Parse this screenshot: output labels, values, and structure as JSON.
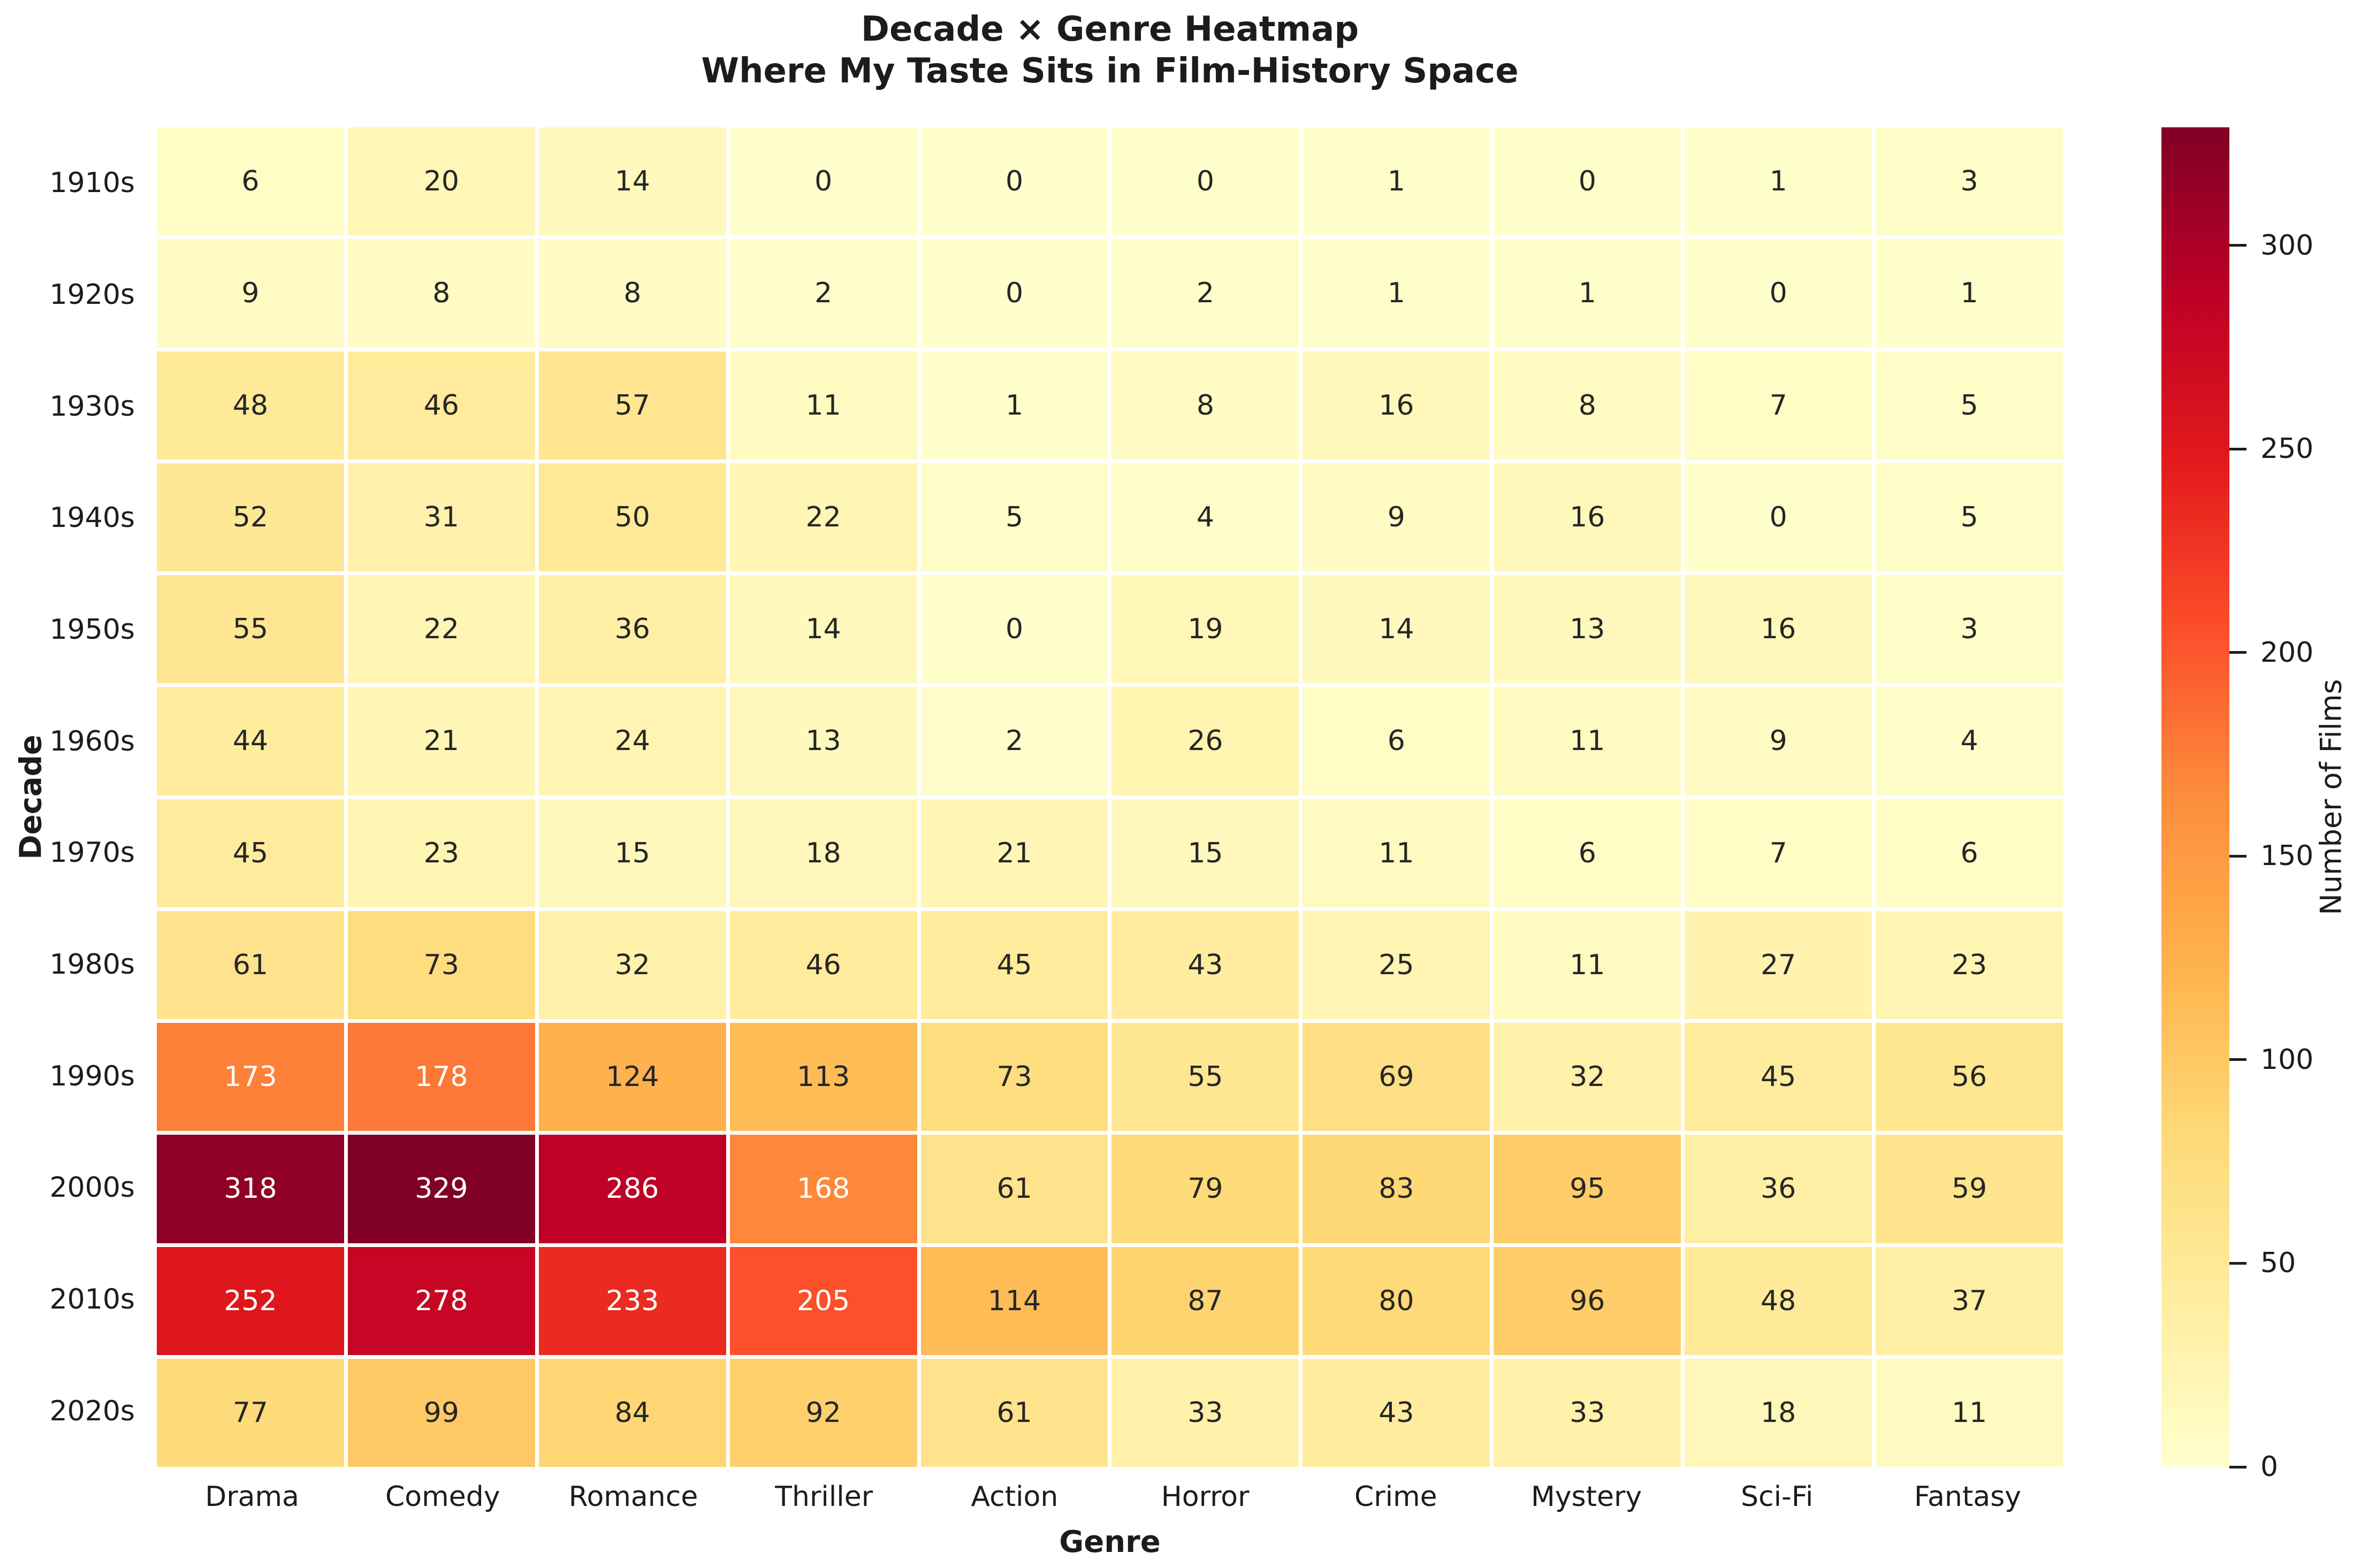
{
  "chart_data": {
    "type": "heatmap",
    "title_line1": "Decade × Genre Heatmap",
    "title_line2": "Where My Taste Sits in Film-History Space",
    "xlabel": "Genre",
    "ylabel": "Decade",
    "columns": [
      "Drama",
      "Comedy",
      "Romance",
      "Thriller",
      "Action",
      "Horror",
      "Crime",
      "Mystery",
      "Sci-Fi",
      "Fantasy"
    ],
    "rows": [
      "1910s",
      "1920s",
      "1930s",
      "1940s",
      "1950s",
      "1960s",
      "1970s",
      "1980s",
      "1990s",
      "2000s",
      "2010s",
      "2020s"
    ],
    "values": [
      [
        6,
        20,
        14,
        0,
        0,
        0,
        1,
        0,
        1,
        3
      ],
      [
        9,
        8,
        8,
        2,
        0,
        2,
        1,
        1,
        0,
        1
      ],
      [
        48,
        46,
        57,
        11,
        1,
        8,
        16,
        8,
        7,
        5
      ],
      [
        52,
        31,
        50,
        22,
        5,
        4,
        9,
        16,
        0,
        5
      ],
      [
        55,
        22,
        36,
        14,
        0,
        19,
        14,
        13,
        16,
        3
      ],
      [
        44,
        21,
        24,
        13,
        2,
        26,
        6,
        11,
        9,
        4
      ],
      [
        45,
        23,
        15,
        18,
        21,
        15,
        11,
        6,
        7,
        6
      ],
      [
        61,
        73,
        32,
        46,
        45,
        43,
        25,
        11,
        27,
        23
      ],
      [
        173,
        178,
        124,
        113,
        73,
        55,
        69,
        32,
        45,
        56
      ],
      [
        318,
        329,
        286,
        168,
        61,
        79,
        83,
        95,
        36,
        59
      ],
      [
        252,
        278,
        233,
        205,
        114,
        87,
        80,
        96,
        48,
        37
      ],
      [
        77,
        99,
        84,
        92,
        61,
        33,
        43,
        33,
        18,
        11
      ]
    ],
    "vmin": 0,
    "vmax": 329,
    "colormap": "YlOrRd",
    "colormap_stops": [
      "#ffffcc",
      "#ffeda0",
      "#fed976",
      "#feb24c",
      "#fd8d3c",
      "#fc4e2a",
      "#e31a1c",
      "#bd0026",
      "#800026"
    ],
    "annotation_dark_text": "#262626",
    "annotation_light_text": "#ffffff",
    "grid_line_color": "#ffffff",
    "legend_position": "colorbar-right",
    "colorbar": {
      "label": "Number of Films",
      "ticks": [
        0,
        50,
        100,
        150,
        200,
        250,
        300
      ]
    }
  }
}
